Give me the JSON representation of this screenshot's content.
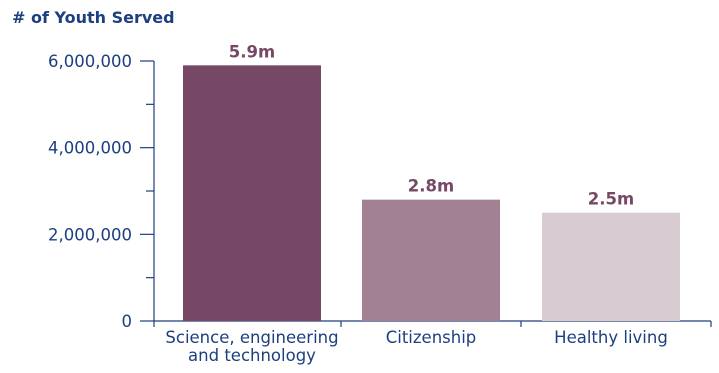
{
  "chart_data": {
    "type": "bar",
    "ylabel": "# of Youth Served",
    "categories": [
      [
        "Science, engineering",
        "and technology"
      ],
      [
        "Citizenship"
      ],
      [
        "Healthy living"
      ]
    ],
    "values": [
      5900000,
      2800000,
      2500000
    ],
    "data_labels": [
      "5.9m",
      "2.8m",
      "2.5m"
    ],
    "bar_colors": [
      "#764866",
      "#a28194",
      "#d8cbd1"
    ],
    "ylim": [
      0,
      6000000
    ],
    "yticks": [
      0,
      2000000,
      4000000,
      6000000
    ],
    "ytick_labels": [
      "0",
      "2,000,000",
      "4,000,000",
      "6,000,000"
    ],
    "minor_yticks": [
      1000000,
      3000000,
      5000000
    ],
    "grid": false,
    "colors": {
      "axis_text": "#1d3f7f",
      "axis_line": "#1d3f7f",
      "data_label": "#764866"
    }
  }
}
